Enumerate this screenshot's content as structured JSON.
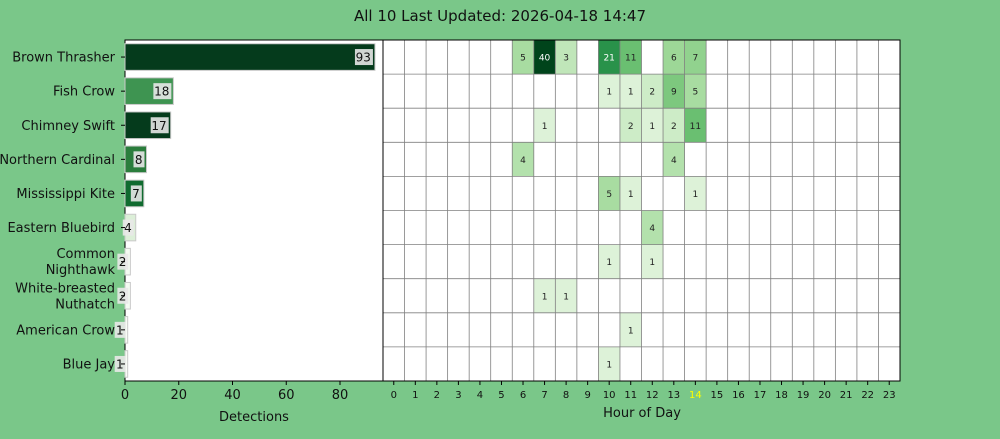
{
  "chart_data": [
    {
      "type": "bar",
      "orientation": "horizontal",
      "title": "All 10 Last Updated: 2026-04-18 14:47",
      "xlabel": "Detections",
      "xlim": [
        0,
        96
      ],
      "xticks": [
        0,
        20,
        40,
        60,
        80
      ],
      "categories": [
        [
          "Brown Thrasher"
        ],
        [
          "Fish Crow"
        ],
        [
          "Chimney Swift"
        ],
        [
          "Northern Cardinal"
        ],
        [
          "Mississippi Kite"
        ],
        [
          "Eastern Bluebird"
        ],
        [
          "Common",
          "Nighthawk"
        ],
        [
          "White-breasted",
          "Nuthatch"
        ],
        [
          "American Crow"
        ],
        [
          "Blue Jay"
        ]
      ],
      "values": [
        93,
        18,
        17,
        8,
        7,
        4,
        2,
        2,
        1,
        1
      ],
      "bar_colors": [
        "#053b1c",
        "#3e9451",
        "#053b1c",
        "#2a7d3c",
        "#106b2f",
        "#dcefd8",
        "#f4fbf2",
        "#f4fbf2",
        "#f7fcf5",
        "#f7fcf5"
      ]
    },
    {
      "type": "heatmap",
      "xlabel": "Hour of Day",
      "x": [
        0,
        1,
        2,
        3,
        4,
        5,
        6,
        7,
        8,
        9,
        10,
        11,
        12,
        13,
        14,
        15,
        16,
        17,
        18,
        19,
        20,
        21,
        22,
        23
      ],
      "highlight_hour": 14,
      "highlight_color": "#ffff00",
      "cells": [
        [
          0,
          6,
          5
        ],
        [
          0,
          7,
          40
        ],
        [
          0,
          8,
          3
        ],
        [
          0,
          10,
          21
        ],
        [
          0,
          11,
          11
        ],
        [
          0,
          13,
          6
        ],
        [
          0,
          14,
          7
        ],
        [
          1,
          10,
          1
        ],
        [
          1,
          11,
          1
        ],
        [
          1,
          12,
          2
        ],
        [
          1,
          13,
          9
        ],
        [
          1,
          14,
          5
        ],
        [
          2,
          7,
          1
        ],
        [
          2,
          11,
          2
        ],
        [
          2,
          12,
          1
        ],
        [
          2,
          13,
          2
        ],
        [
          2,
          14,
          11
        ],
        [
          3,
          6,
          4
        ],
        [
          3,
          13,
          4
        ],
        [
          4,
          10,
          5
        ],
        [
          4,
          11,
          1
        ],
        [
          4,
          14,
          1
        ],
        [
          5,
          12,
          4
        ],
        [
          6,
          10,
          1
        ],
        [
          6,
          12,
          1
        ],
        [
          7,
          7,
          1
        ],
        [
          7,
          8,
          1
        ],
        [
          8,
          11,
          1
        ],
        [
          9,
          10,
          1
        ]
      ],
      "vmax": 40,
      "cmap": "greens"
    }
  ]
}
